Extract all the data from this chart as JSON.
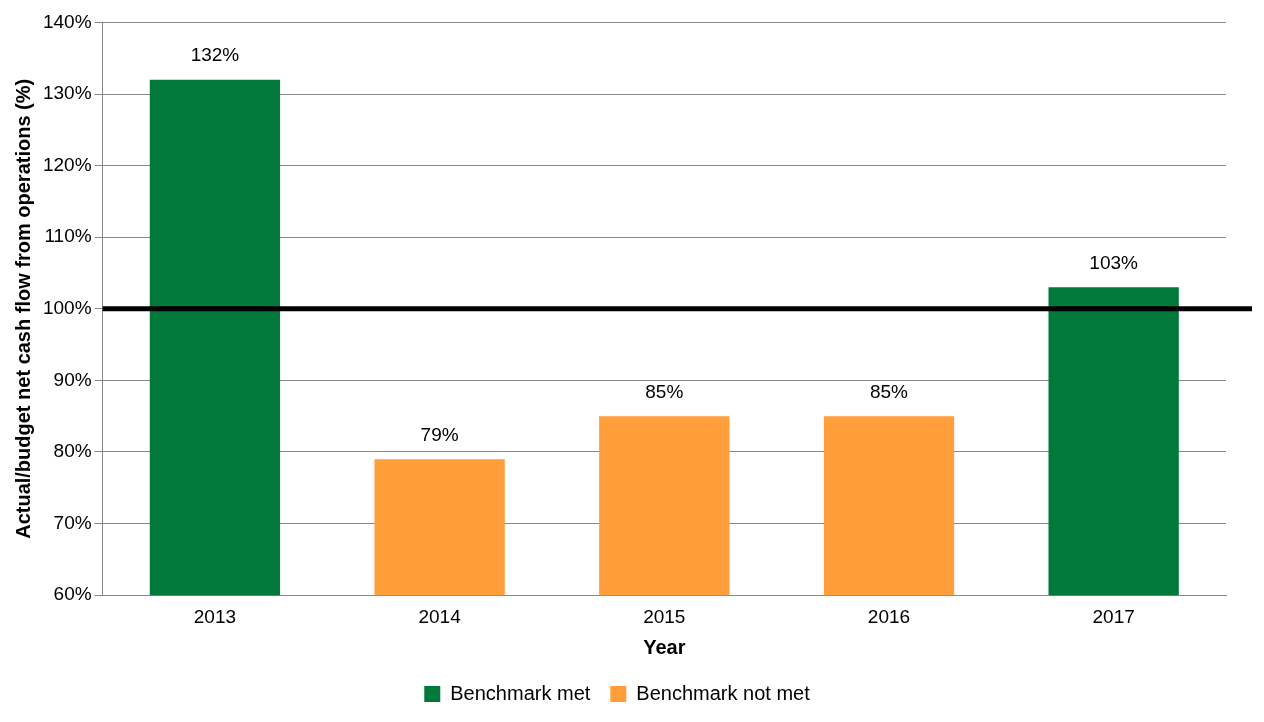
{
  "chart_data": {
    "type": "bar",
    "xlabel": "Year",
    "ylabel": "Actual/budget net cash flow from operations (%)",
    "categories": [
      "2013",
      "2014",
      "2015",
      "2016",
      "2017"
    ],
    "series": [
      {
        "name": "Benchmark met",
        "color": "#00793a",
        "values": [
          132,
          null,
          null,
          null,
          103
        ],
        "value_labels": [
          "132%",
          null,
          null,
          null,
          "103%"
        ]
      },
      {
        "name": "Benchmark not met",
        "color": "#ff9e3a",
        "values": [
          null,
          79,
          85,
          85,
          null
        ],
        "value_labels": [
          null,
          "79%",
          "85%",
          "85%",
          null
        ]
      }
    ],
    "ylim": [
      60,
      140
    ],
    "yticks": [
      {
        "value": 60,
        "label": "60%"
      },
      {
        "value": 70,
        "label": "70%"
      },
      {
        "value": 80,
        "label": "80%"
      },
      {
        "value": 90,
        "label": "90%"
      },
      {
        "value": 100,
        "label": "100%"
      },
      {
        "value": 110,
        "label": "110%"
      },
      {
        "value": 120,
        "label": "120%"
      },
      {
        "value": 130,
        "label": "130%"
      },
      {
        "value": 140,
        "label": "140%"
      }
    ],
    "ref_lines": [
      {
        "axis": "y",
        "value": 100,
        "color": "#000000"
      }
    ],
    "grid": "y",
    "legend": "bottom"
  }
}
